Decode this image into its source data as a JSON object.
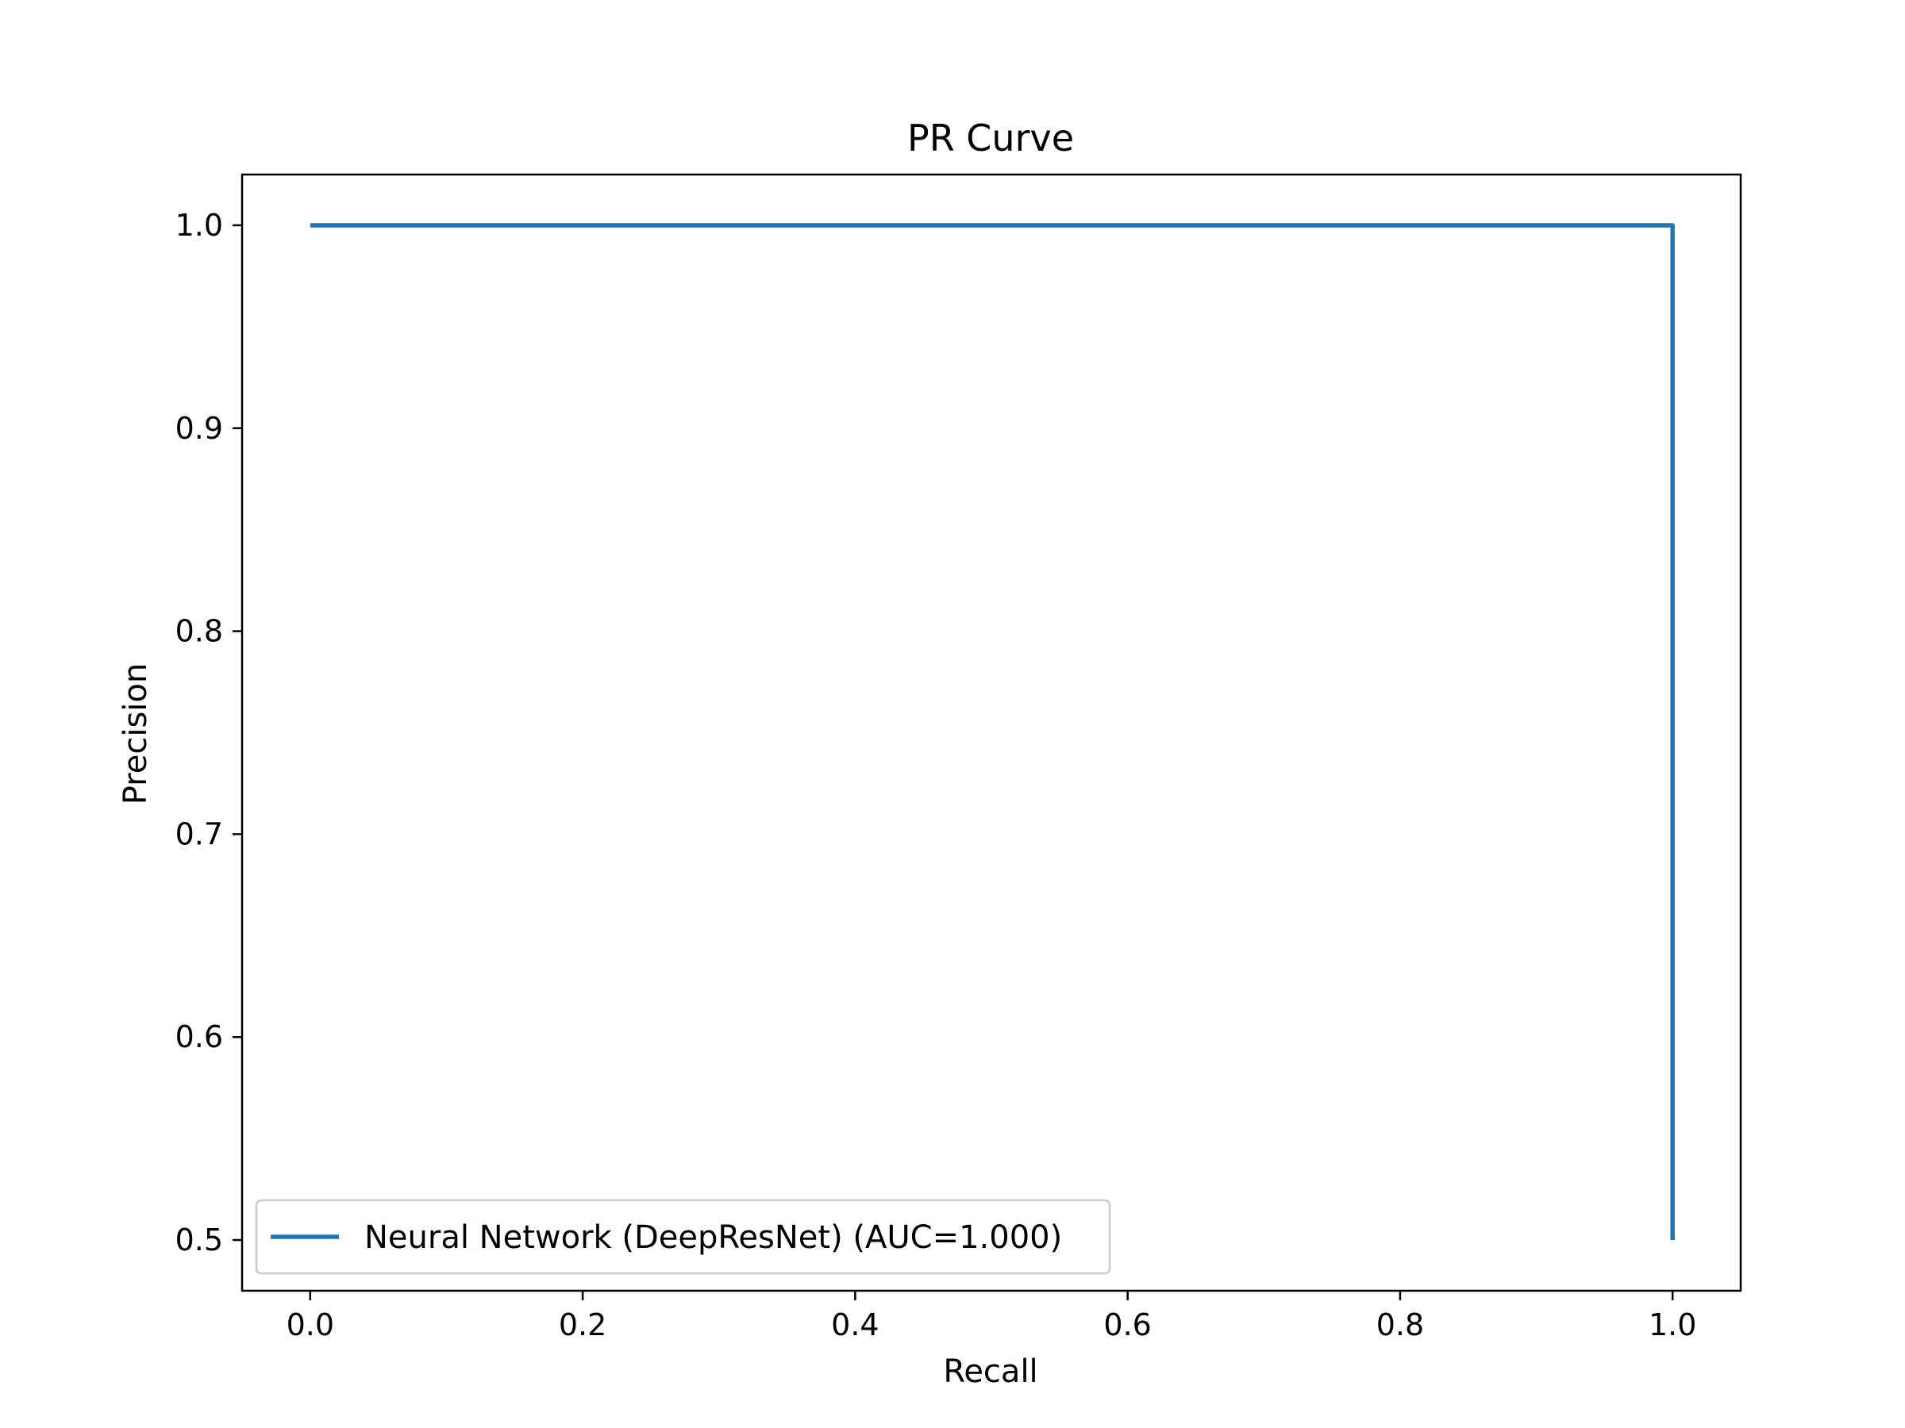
{
  "chart_data": {
    "type": "line",
    "title": "PR Curve",
    "xlabel": "Recall",
    "ylabel": "Precision",
    "xlim": [
      -0.05,
      1.05
    ],
    "ylim": [
      0.475,
      1.025
    ],
    "x_ticks": [
      {
        "value": 0.0,
        "label": "0.0"
      },
      {
        "value": 0.2,
        "label": "0.2"
      },
      {
        "value": 0.4,
        "label": "0.4"
      },
      {
        "value": 0.6,
        "label": "0.6"
      },
      {
        "value": 0.8,
        "label": "0.8"
      },
      {
        "value": 1.0,
        "label": "1.0"
      }
    ],
    "y_ticks": [
      {
        "value": 0.5,
        "label": "0.5"
      },
      {
        "value": 0.6,
        "label": "0.6"
      },
      {
        "value": 0.7,
        "label": "0.7"
      },
      {
        "value": 0.8,
        "label": "0.8"
      },
      {
        "value": 0.9,
        "label": "0.9"
      },
      {
        "value": 1.0,
        "label": "1.0"
      }
    ],
    "grid": false,
    "legend_position": "lower-left",
    "series": [
      {
        "name": "Neural Network (DeepResNet) (AUC=1.000)",
        "color": "#1f77b4",
        "points": [
          {
            "x": 0.0,
            "y": 1.0
          },
          {
            "x": 1.0,
            "y": 1.0
          },
          {
            "x": 1.0,
            "y": 0.5
          }
        ]
      }
    ]
  }
}
